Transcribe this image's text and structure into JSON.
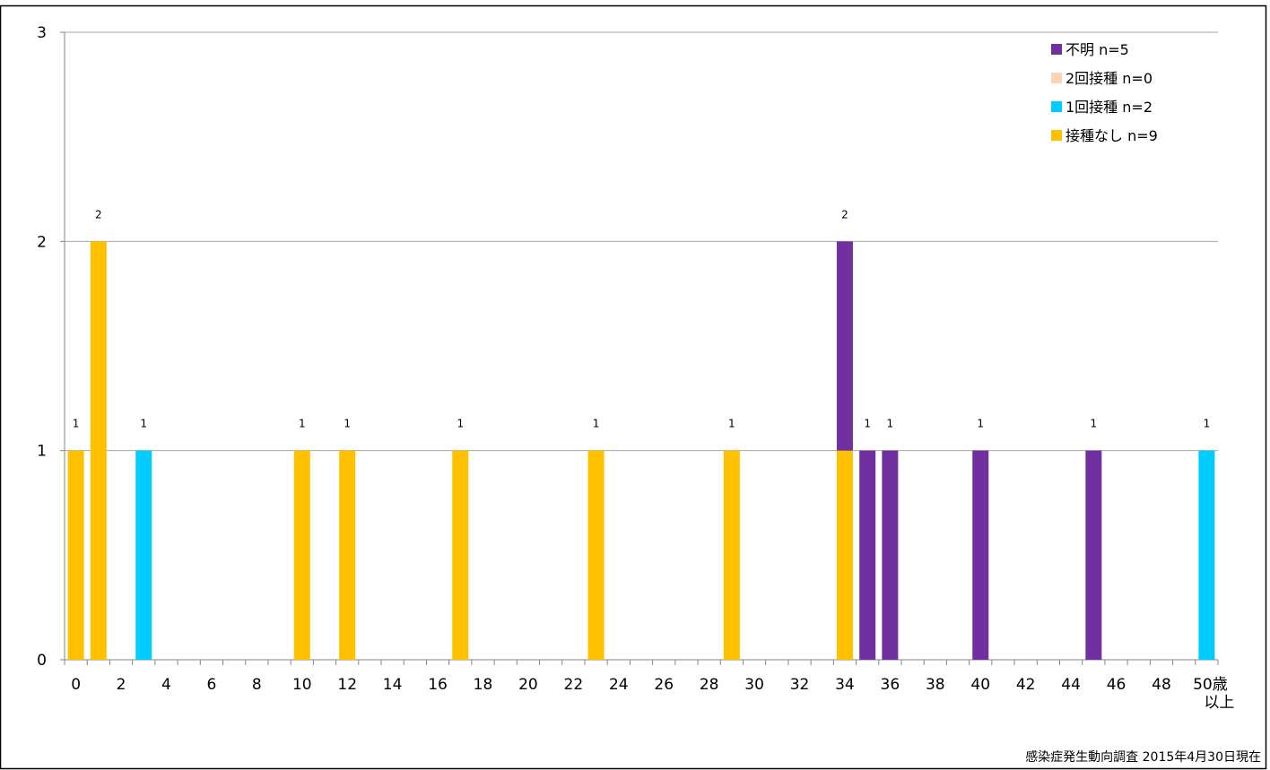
{
  "chart_data": {
    "type": "bar",
    "stacked": true,
    "x": [
      "0",
      "1",
      "2",
      "3",
      "4",
      "5",
      "6",
      "7",
      "8",
      "9",
      "10",
      "11",
      "12",
      "13",
      "14",
      "15",
      "16",
      "17",
      "18",
      "19",
      "20",
      "21",
      "22",
      "23",
      "24",
      "25",
      "26",
      "27",
      "28",
      "29",
      "30",
      "31",
      "32",
      "33",
      "34",
      "35",
      "36",
      "37",
      "38",
      "39",
      "40",
      "41",
      "42",
      "43",
      "44",
      "45",
      "46",
      "47",
      "48",
      "49",
      "50歳以上"
    ],
    "xtick_labels": [
      "0",
      "2",
      "4",
      "6",
      "8",
      "10",
      "12",
      "14",
      "16",
      "18",
      "20",
      "22",
      "24",
      "26",
      "28",
      "30",
      "32",
      "34",
      "36",
      "38",
      "40",
      "42",
      "44",
      "46",
      "48",
      "50歳",
      "以上"
    ],
    "yticks": [
      "0",
      "1",
      "2",
      "3"
    ],
    "ylim": [
      0,
      3
    ],
    "grid": true,
    "legend_placement": "top-right",
    "series": [
      {
        "name": "接種なし n=9",
        "color": "#FFC000",
        "values": [
          1,
          2,
          0,
          0,
          0,
          0,
          0,
          0,
          0,
          0,
          1,
          0,
          1,
          0,
          0,
          0,
          0,
          1,
          0,
          0,
          0,
          0,
          0,
          1,
          0,
          0,
          0,
          0,
          0,
          1,
          0,
          0,
          0,
          0,
          1,
          0,
          0,
          0,
          0,
          0,
          0,
          0,
          0,
          0,
          0,
          0,
          0,
          0,
          0,
          0,
          0
        ]
      },
      {
        "name": "1回接種 n=2",
        "color": "#00CCFF",
        "values": [
          0,
          0,
          0,
          1,
          0,
          0,
          0,
          0,
          0,
          0,
          0,
          0,
          0,
          0,
          0,
          0,
          0,
          0,
          0,
          0,
          0,
          0,
          0,
          0,
          0,
          0,
          0,
          0,
          0,
          0,
          0,
          0,
          0,
          0,
          0,
          0,
          0,
          0,
          0,
          0,
          0,
          0,
          0,
          0,
          0,
          0,
          0,
          0,
          0,
          0,
          1
        ]
      },
      {
        "name": "2回接種 n=0",
        "color": "#FBD4B4",
        "values": [
          0,
          0,
          0,
          0,
          0,
          0,
          0,
          0,
          0,
          0,
          0,
          0,
          0,
          0,
          0,
          0,
          0,
          0,
          0,
          0,
          0,
          0,
          0,
          0,
          0,
          0,
          0,
          0,
          0,
          0,
          0,
          0,
          0,
          0,
          0,
          0,
          0,
          0,
          0,
          0,
          0,
          0,
          0,
          0,
          0,
          0,
          0,
          0,
          0,
          0,
          0
        ]
      },
      {
        "name": "不明 n=5",
        "color": "#7030A0",
        "values": [
          0,
          0,
          0,
          0,
          0,
          0,
          0,
          0,
          0,
          0,
          0,
          0,
          0,
          0,
          0,
          0,
          0,
          0,
          0,
          0,
          0,
          0,
          0,
          0,
          0,
          0,
          0,
          0,
          0,
          0,
          0,
          0,
          0,
          0,
          1,
          1,
          1,
          0,
          0,
          0,
          1,
          0,
          0,
          0,
          0,
          1,
          0,
          0,
          0,
          0,
          0
        ]
      }
    ],
    "totals_labels": [
      "1",
      "2",
      "",
      "1",
      "",
      "",
      "",
      "",
      "",
      "",
      "1",
      "",
      "1",
      "",
      "",
      "",
      "",
      "1",
      "",
      "",
      "",
      "",
      "",
      "1",
      "",
      "",
      "",
      "",
      "",
      "1",
      "",
      "",
      "",
      "",
      "2",
      "1",
      "1",
      "",
      "",
      "",
      "1",
      "",
      "",
      "",
      "",
      "1",
      "",
      "",
      "",
      "",
      "1"
    ],
    "legend_order": [
      3,
      2,
      1,
      0
    ],
    "source": "感染症発生動向調査 2015年4月30日現在"
  }
}
